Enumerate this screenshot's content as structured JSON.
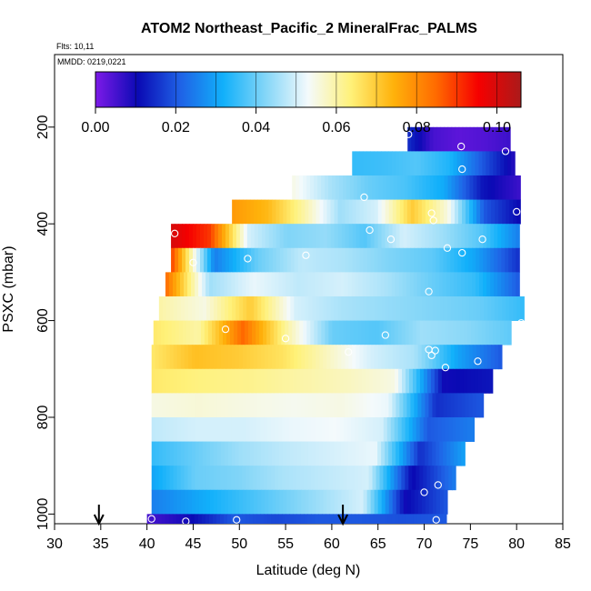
{
  "chart_data": {
    "type": "heatmap",
    "title": "ATOM2 Northeast_Pacific_2 MineralFrac_PALMS",
    "flights_label": "Flts: 10,11",
    "dates_label": "MMDD: 0219,0221",
    "xlabel": "Latitude (deg N)",
    "ylabel": "PSXC (mbar)",
    "xlim": [
      30,
      85
    ],
    "ylim": [
      1020,
      50
    ],
    "xticks": [
      "30",
      "35",
      "40",
      "45",
      "50",
      "55",
      "60",
      "65",
      "70",
      "75",
      "80",
      "85"
    ],
    "yticks": [
      "200",
      "400",
      "600",
      "800",
      "1000"
    ],
    "colorbar": {
      "range": [
        0.0,
        0.106
      ],
      "ticks": [
        "0.00",
        "0.02",
        "0.04",
        "0.06",
        "0.08",
        "0.10"
      ],
      "colors": [
        "#7d1ae8",
        "#0a0ab4",
        "#1f62e6",
        "#11b0fa",
        "#84d6f8",
        "#f4fafc",
        "#fff179",
        "#ffb20b",
        "#ff6b00",
        "#f60000",
        "#ab1a1a"
      ]
    },
    "arrows_at_latitude": [
      34.8,
      61.2
    ],
    "bands": [
      {
        "p": [
          200,
          250
        ],
        "lat": [
          68.2,
          79.3
        ],
        "v": [
          0.015,
          0.005,
          0.003,
          0.004,
          0.006
        ]
      },
      {
        "p": [
          250,
          300
        ],
        "lat": [
          62.2,
          79.8
        ],
        "v": [
          0.035,
          0.036,
          0.038,
          0.033,
          0.02,
          0.008
        ]
      },
      {
        "p": [
          300,
          350
        ],
        "lat": [
          55.7,
          80.4
        ],
        "v": [
          0.055,
          0.046,
          0.04,
          0.037,
          0.031,
          0.012,
          0.006
        ]
      },
      {
        "p": [
          350,
          400
        ],
        "lat": [
          49.2,
          80.4
        ],
        "v": [
          0.078,
          0.073,
          0.06,
          0.045,
          0.05,
          0.07,
          0.055,
          0.02,
          0.01
        ]
      },
      {
        "p": [
          400,
          450
        ],
        "lat": [
          42.6,
          80.3
        ],
        "v": [
          0.1,
          0.09,
          0.05,
          0.042,
          0.044,
          0.038,
          0.05,
          0.045,
          0.038,
          0.025
        ]
      },
      {
        "p": [
          450,
          500
        ],
        "lat": [
          42.6,
          80.3
        ],
        "v": [
          0.09,
          0.025,
          0.04,
          0.048,
          0.046,
          0.042,
          0.039,
          0.03,
          0.015
        ]
      },
      {
        "p": [
          500,
          550
        ],
        "lat": [
          42.0,
          80.3
        ],
        "v": [
          0.085,
          0.045,
          0.052,
          0.048,
          0.05,
          0.046,
          0.04,
          0.035,
          0.02
        ]
      },
      {
        "p": [
          550,
          600
        ],
        "lat": [
          41.3,
          80.8
        ],
        "v": [
          0.06,
          0.055,
          0.07,
          0.05,
          0.046,
          0.044,
          0.042,
          0.04,
          0.035
        ]
      },
      {
        "p": [
          600,
          650
        ],
        "lat": [
          40.7,
          79.4
        ],
        "v": [
          0.065,
          0.06,
          0.085,
          0.06,
          0.04,
          0.038,
          0.045,
          0.043,
          0.039
        ]
      },
      {
        "p": [
          650,
          700
        ],
        "lat": [
          40.5,
          78.4
        ],
        "v": [
          0.065,
          0.072,
          0.07,
          0.066,
          0.058,
          0.05,
          0.046,
          0.03,
          0.02
        ]
      },
      {
        "p": [
          700,
          750
        ],
        "lat": [
          40.5,
          77.4
        ],
        "v": [
          0.065,
          0.063,
          0.062,
          0.06,
          0.058,
          0.055,
          0.01,
          0.012
        ]
      },
      {
        "p": [
          750,
          800
        ],
        "lat": [
          40.5,
          76.4
        ],
        "v": [
          0.055,
          0.056,
          0.055,
          0.054,
          0.055,
          0.052,
          0.015,
          0.02
        ]
      },
      {
        "p": [
          800,
          850
        ],
        "lat": [
          40.5,
          75.4
        ],
        "v": [
          0.048,
          0.05,
          0.05,
          0.052,
          0.053,
          0.05,
          0.02,
          0.025
        ]
      },
      {
        "p": [
          850,
          900
        ],
        "lat": [
          40.5,
          74.4
        ],
        "v": [
          0.035,
          0.04,
          0.045,
          0.048,
          0.05,
          0.052,
          0.015,
          0.03
        ]
      },
      {
        "p": [
          900,
          950
        ],
        "lat": [
          40.5,
          73.4
        ],
        "v": [
          0.03,
          0.04,
          0.042,
          0.046,
          0.048,
          0.05,
          0.01,
          0.025
        ]
      },
      {
        "p": [
          950,
          1000
        ],
        "lat": [
          40.5,
          72.5
        ],
        "v": [
          0.025,
          0.03,
          0.035,
          0.04,
          0.045,
          0.05,
          0.01,
          0.02
        ]
      },
      {
        "p": [
          1000,
          1020
        ],
        "lat": [
          40.0,
          72.4
        ],
        "v": [
          0.005,
          0.01,
          0.02,
          0.018,
          0.02,
          0.02,
          0.019,
          0.02
        ]
      }
    ],
    "points": [
      {
        "lat": 68.3,
        "p": 215
      },
      {
        "lat": 74.0,
        "p": 240
      },
      {
        "lat": 78.8,
        "p": 250
      },
      {
        "lat": 74.1,
        "p": 287
      },
      {
        "lat": 63.5,
        "p": 345
      },
      {
        "lat": 70.8,
        "p": 378
      },
      {
        "lat": 80.0,
        "p": 375
      },
      {
        "lat": 71.0,
        "p": 393
      },
      {
        "lat": 43.0,
        "p": 420
      },
      {
        "lat": 64.1,
        "p": 413
      },
      {
        "lat": 66.4,
        "p": 432
      },
      {
        "lat": 76.3,
        "p": 432
      },
      {
        "lat": 72.5,
        "p": 450
      },
      {
        "lat": 74.1,
        "p": 460
      },
      {
        "lat": 57.2,
        "p": 465
      },
      {
        "lat": 50.9,
        "p": 472
      },
      {
        "lat": 45.0,
        "p": 480
      },
      {
        "lat": 70.5,
        "p": 540
      },
      {
        "lat": 80.5,
        "p": 605
      },
      {
        "lat": 48.5,
        "p": 618
      },
      {
        "lat": 65.8,
        "p": 630
      },
      {
        "lat": 55.0,
        "p": 637
      },
      {
        "lat": 70.5,
        "p": 660
      },
      {
        "lat": 71.2,
        "p": 662
      },
      {
        "lat": 61.8,
        "p": 665
      },
      {
        "lat": 70.8,
        "p": 672
      },
      {
        "lat": 75.8,
        "p": 684
      },
      {
        "lat": 72.3,
        "p": 697
      },
      {
        "lat": 71.5,
        "p": 940
      },
      {
        "lat": 70.0,
        "p": 955
      },
      {
        "lat": 40.5,
        "p": 1010
      },
      {
        "lat": 44.2,
        "p": 1015
      },
      {
        "lat": 49.7,
        "p": 1012
      },
      {
        "lat": 71.3,
        "p": 1012
      }
    ]
  }
}
